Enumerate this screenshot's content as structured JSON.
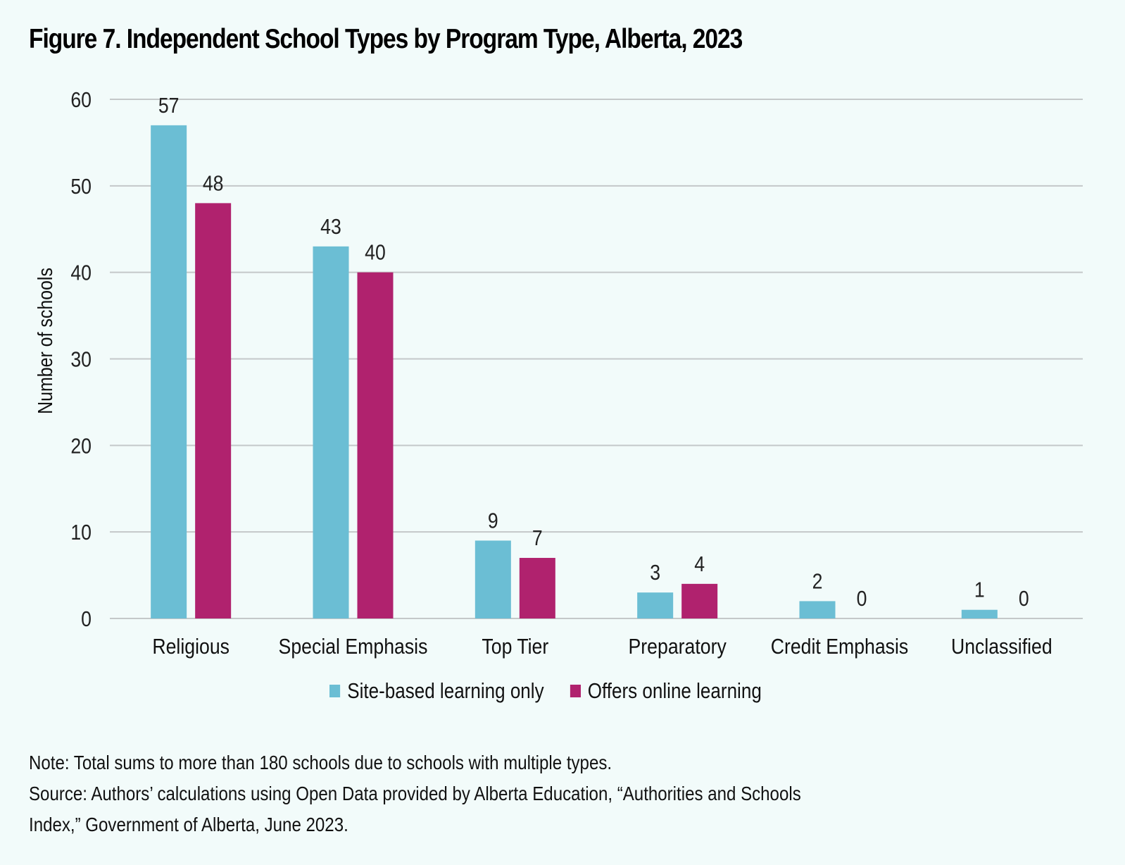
{
  "title": "Figure 7. Independent School Types by Program Type, Alberta, 2023",
  "chart_data": {
    "type": "bar",
    "title": "Figure 7. Independent School Types by Program Type, Alberta, 2023",
    "xlabel": "",
    "ylabel": "Number of schools",
    "ylim": [
      0,
      60
    ],
    "yticks": [
      0,
      10,
      20,
      30,
      40,
      50,
      60
    ],
    "grid": true,
    "legend_position": "bottom",
    "categories": [
      "Religious",
      "Special Emphasis",
      "Top Tier",
      "Preparatory",
      "Credit Emphasis",
      "Unclassified"
    ],
    "series": [
      {
        "name": "Site-based learning only",
        "color": "#6bbed4",
        "values": [
          57,
          43,
          9,
          3,
          2,
          1
        ]
      },
      {
        "name": "Offers online learning",
        "color": "#b0226e",
        "values": [
          48,
          40,
          7,
          4,
          0,
          0
        ]
      }
    ]
  },
  "notes": {
    "note": "Note: Total sums to more than 180 schools due to schools with multiple types.",
    "source_line1": "Source: Authors’ calculations using Open Data provided by Alberta Education, “Authorities and Schools",
    "source_line2": "Index,” Government of Alberta, June 2023."
  }
}
